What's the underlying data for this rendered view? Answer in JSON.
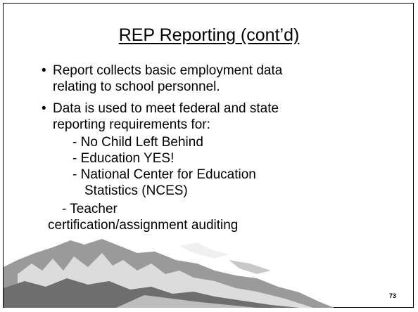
{
  "slide": {
    "title": "REP Reporting (cont’d)",
    "bullets": [
      "Report collects basic employment data relating to school personnel.",
      "Data is used to meet federal and state reporting requirements for:"
    ],
    "sub_items": [
      "- No Child Left Behind",
      "- Education YES!",
      "- National Center for Education Statistics (NCES)"
    ],
    "last_item": "- Teacher certification/assignment auditing",
    "page_number": "73"
  }
}
